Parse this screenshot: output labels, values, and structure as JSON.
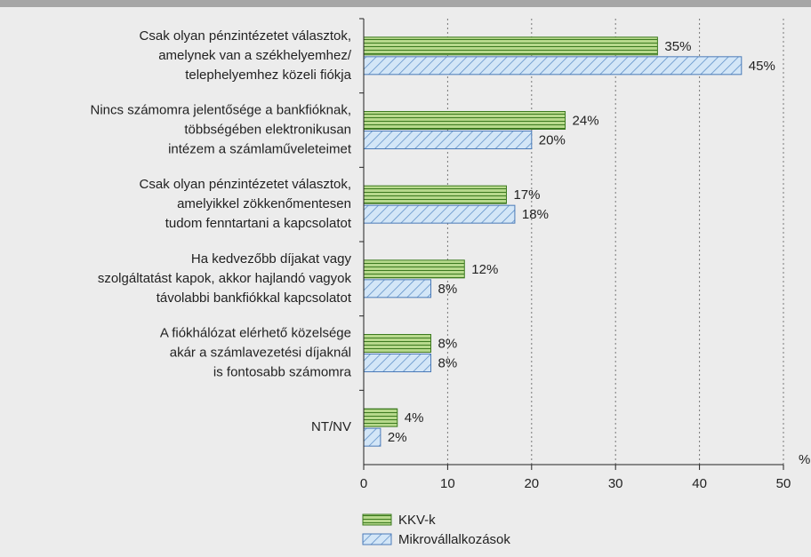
{
  "chart_data": {
    "type": "bar",
    "orientation": "horizontal",
    "categories": [
      [
        "Csak olyan pénzintézetet választok,",
        "amelynek van a székhelyemhez/",
        "telephelyemhez közeli fiókja"
      ],
      [
        "Nincs számomra jelentősége a bankfióknak,",
        "többségében elektronikusan",
        "intézem a számlaműveleteimet"
      ],
      [
        "Csak olyan pénzintézetet választok,",
        "amelyikkel zökkenőmentesen",
        "tudom fenntartani a kapcsolatot"
      ],
      [
        "Ha kedvezőbb díjakat vagy",
        "szolgáltatást kapok, akkor hajlandó vagyok",
        "távolabbi bankfiókkal kapcsolatot"
      ],
      [
        "A fiókhálózat elérhető közelsége",
        "akár a számlavezetési díjaknál",
        "is fontosabb számomra"
      ],
      [
        "NT/NV"
      ]
    ],
    "series": [
      {
        "name": "KKV-k",
        "color": "#b7d98c",
        "values": [
          35,
          24,
          17,
          12,
          8,
          4
        ],
        "value_labels": [
          "35%",
          "24%",
          "17%",
          "12%",
          "8%",
          "4%"
        ]
      },
      {
        "name": "Mikrovállalkozások",
        "color": "#d3e6f7",
        "values": [
          45,
          20,
          18,
          8,
          8,
          2
        ],
        "value_labels": [
          "45%",
          "20%",
          "18%",
          "8%",
          "8%",
          "2%"
        ]
      }
    ],
    "xlim": [
      0,
      50
    ],
    "xticks": [
      0,
      10,
      20,
      30,
      40,
      50
    ],
    "xlabel": "%",
    "grid": true,
    "legend": "bottom"
  }
}
